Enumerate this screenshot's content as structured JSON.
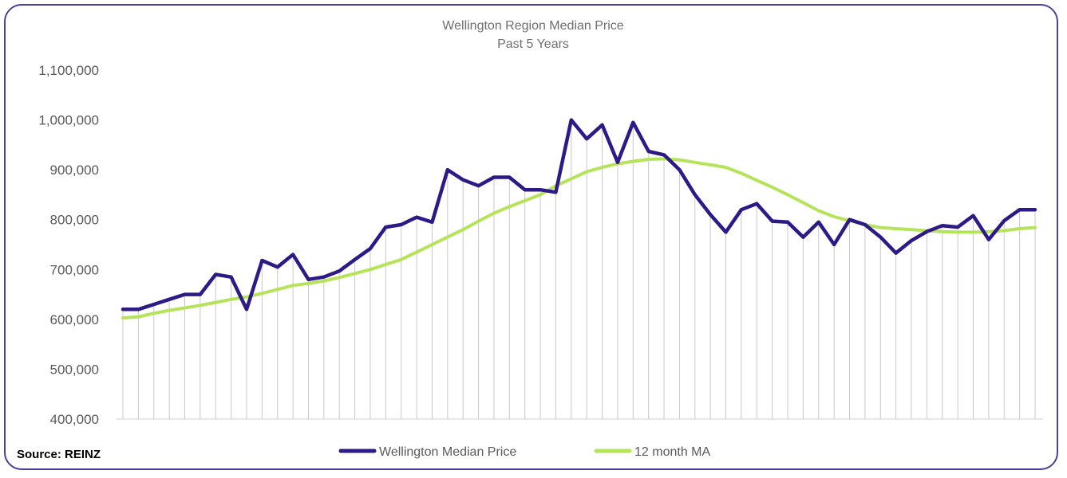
{
  "chart_data": {
    "type": "line",
    "title": "Wellington Region Median Price",
    "subtitle": "Past 5 Years",
    "ylim": [
      400000,
      1100000
    ],
    "yticks": [
      400000,
      500000,
      600000,
      700000,
      800000,
      900000,
      1000000,
      1100000
    ],
    "ytick_labels": [
      "400,000",
      "500,000",
      "600,000",
      "700,000",
      "800,000",
      "900,000",
      "1,000,000",
      "1,100,000"
    ],
    "grid": "vertical drop lines",
    "legend_position": "bottom",
    "source": "Source: REINZ",
    "series": [
      {
        "name": "Wellington Median Price",
        "color": "#2e1a87",
        "values": [
          620000,
          620000,
          630000,
          640000,
          650000,
          650000,
          690000,
          685000,
          620000,
          718000,
          705000,
          730000,
          680000,
          685000,
          697000,
          720000,
          742000,
          785000,
          790000,
          805000,
          795000,
          900000,
          880000,
          868000,
          885000,
          885000,
          860000,
          860000,
          855000,
          1000000,
          962000,
          990000,
          915000,
          995000,
          937000,
          930000,
          900000,
          850000,
          810000,
          775000,
          820000,
          832000,
          797000,
          795000,
          765000,
          795000,
          750000,
          800000,
          790000,
          765000,
          733000,
          758000,
          776000,
          788000,
          785000,
          808000,
          760000,
          798000,
          820000,
          820000
        ]
      },
      {
        "name": "12 month MA",
        "color": "#b5e35a",
        "values": [
          603000,
          605000,
          612000,
          618000,
          623000,
          628000,
          634000,
          640000,
          645000,
          652000,
          660000,
          668000,
          672000,
          677000,
          684000,
          692000,
          700000,
          710000,
          720000,
          735000,
          750000,
          765000,
          780000,
          797000,
          813000,
          826000,
          838000,
          850000,
          868000,
          882000,
          896000,
          905000,
          912000,
          917000,
          921000,
          922000,
          920000,
          915000,
          910000,
          905000,
          893000,
          879000,
          865000,
          850000,
          834000,
          818000,
          806000,
          798000,
          790000,
          784000,
          782000,
          780000,
          778000,
          776000,
          775000,
          775000,
          776000,
          778000,
          782000,
          784000
        ]
      }
    ]
  }
}
